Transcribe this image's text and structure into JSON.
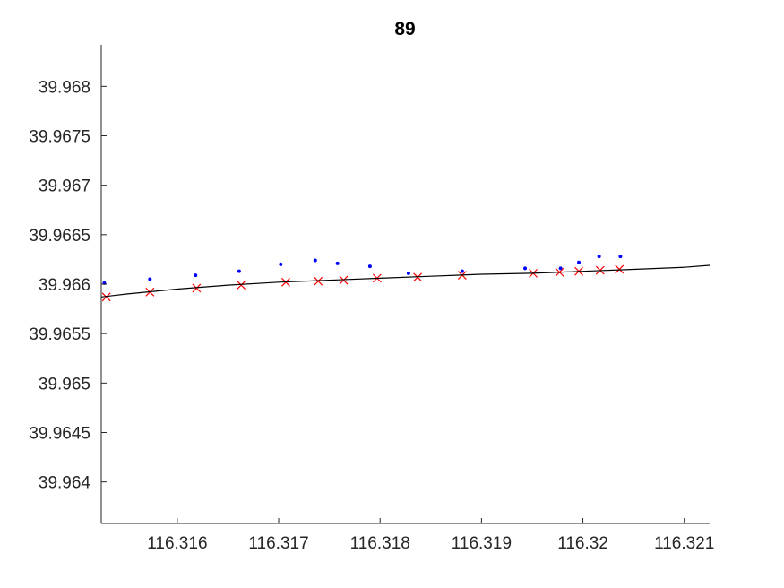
{
  "chart_data": {
    "type": "scatter",
    "title": "89",
    "xlabel": "",
    "ylabel": "",
    "xlim": [
      116.31525,
      116.32125
    ],
    "ylim": [
      39.96358,
      39.96842
    ],
    "x_ticks": [
      {
        "value": 116.316,
        "label": "116.316"
      },
      {
        "value": 116.317,
        "label": "116.317"
      },
      {
        "value": 116.318,
        "label": "116.318"
      },
      {
        "value": 116.319,
        "label": "116.319"
      },
      {
        "value": 116.32,
        "label": "116.32"
      },
      {
        "value": 116.321,
        "label": "116.321"
      }
    ],
    "y_ticks": [
      {
        "value": 39.964,
        "label": "39.964"
      },
      {
        "value": 39.9645,
        "label": "39.9645"
      },
      {
        "value": 39.965,
        "label": "39.965"
      },
      {
        "value": 39.9655,
        "label": "39.9655"
      },
      {
        "value": 39.966,
        "label": "39.966"
      },
      {
        "value": 39.9665,
        "label": "39.9665"
      },
      {
        "value": 39.967,
        "label": "39.967"
      },
      {
        "value": 39.9675,
        "label": "39.9675"
      },
      {
        "value": 39.968,
        "label": "39.968"
      }
    ],
    "grid": false,
    "series": [
      {
        "marker": "dot",
        "color": "#0000ff",
        "x": [
          116.31528,
          116.31573,
          116.31618,
          116.31661,
          116.31702,
          116.31736,
          116.31758,
          116.3179,
          116.31828,
          116.31881,
          116.31943,
          116.31978,
          116.31996,
          116.32016,
          116.32037
        ],
        "y": [
          39.96601,
          39.96605,
          39.96609,
          39.96613,
          39.9662,
          39.96624,
          39.96621,
          39.96618,
          39.96611,
          39.96613,
          39.96616,
          39.96616,
          39.96622,
          39.96628,
          39.96628
        ]
      },
      {
        "marker": "x",
        "color": "#ff0000",
        "x": [
          116.3153,
          116.31573,
          116.31619,
          116.31663,
          116.31707,
          116.31739,
          116.31764,
          116.31797,
          116.31837,
          116.31881,
          116.31951,
          116.31977,
          116.31996,
          116.32017,
          116.32036
        ],
        "y": [
          39.96587,
          39.96592,
          39.96596,
          39.96599,
          39.96602,
          39.96603,
          39.96604,
          39.96606,
          39.96607,
          39.96609,
          39.96611,
          39.96612,
          39.96613,
          39.96614,
          39.96615
        ]
      },
      {
        "marker": "line",
        "color": "#000000",
        "x": [
          116.31525,
          116.3155,
          116.316,
          116.3165,
          116.317,
          116.3175,
          116.318,
          116.3185,
          116.319,
          116.3195,
          116.32,
          116.3205,
          116.321,
          116.32125
        ],
        "y": [
          39.96587,
          39.9659,
          39.96595,
          39.96599,
          39.96602,
          39.96604,
          39.96606,
          39.96608,
          39.9661,
          39.96611,
          39.96613,
          39.96615,
          39.96617,
          39.96619
        ]
      }
    ]
  }
}
